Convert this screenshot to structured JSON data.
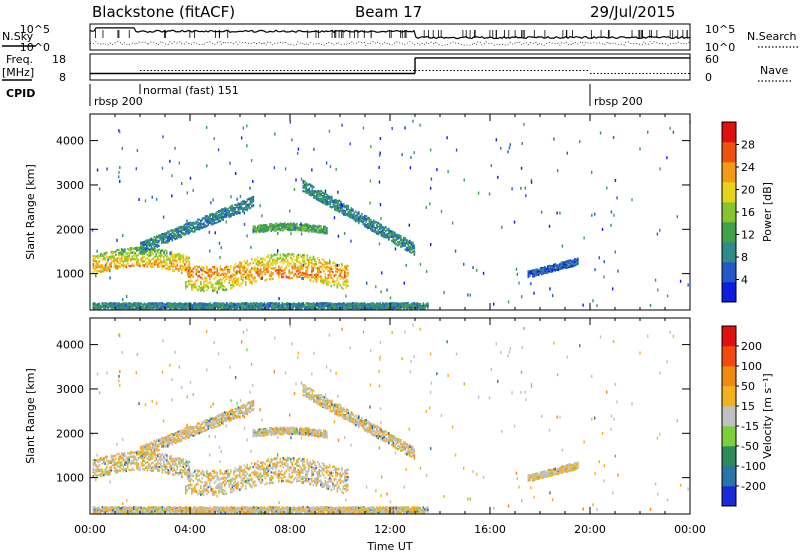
{
  "header": {
    "title": "Blackstone (fitACF)",
    "beam": "Beam 17",
    "date": "29/Jul/2015"
  },
  "chart_data": [
    {
      "type": "line",
      "name_panel": "sky-search",
      "left_label": "N.Sky",
      "right_label": "N.Search",
      "left_ticks": [
        "10^5",
        "10^0"
      ],
      "right_ticks": [
        "10^5",
        "10^0"
      ]
    },
    {
      "type": "line",
      "name_panel": "freq-nave",
      "left_label_line1": "Freq.",
      "left_label_line2": "[MHz]",
      "right_label": "Nave",
      "left_ticks": [
        "18",
        "8"
      ],
      "right_ticks": [
        "60",
        "0"
      ],
      "freq_segments": [
        {
          "t0": 0.0,
          "t1": 13.0,
          "mhz": 10.5
        },
        {
          "t0": 13.0,
          "t1": 24.0,
          "mhz": 16.5
        }
      ],
      "nave_segments": [
        {
          "t0": 0.0,
          "t1": 2.0,
          "nave": 15
        },
        {
          "t0": 2.0,
          "t1": 13.0,
          "nave": 22
        },
        {
          "t0": 13.0,
          "t1": 20.0,
          "nave": 22
        },
        {
          "t0": 20.0,
          "t1": 24.0,
          "nave": 15
        }
      ]
    },
    {
      "type": "table",
      "name_panel": "cpid",
      "label": "CPID",
      "entries": [
        {
          "t": 0.0,
          "text": "rbsp 200"
        },
        {
          "t": 2.0,
          "text": "normal (fast) 151"
        },
        {
          "t": 20.0,
          "text": "rbsp 200"
        }
      ]
    },
    {
      "type": "heatmap",
      "name_panel": "power",
      "ylabel": "Slant Range [km]",
      "y_ticks": [
        1000,
        2000,
        3000,
        4000
      ],
      "ylim": [
        180,
        4600
      ],
      "colorbar_label": "Power [dB]",
      "colorbar_ticks": [
        "28",
        "24",
        "20",
        "16",
        "12",
        "8",
        "4"
      ],
      "colors": [
        "#0b1ee0",
        "#2458c8",
        "#2f8a8a",
        "#42a04a",
        "#86c62c",
        "#e8d21a",
        "#f59a14",
        "#f0520e",
        "#e01010"
      ]
    },
    {
      "type": "heatmap",
      "name_panel": "velocity",
      "ylabel": "Slant Range [km]",
      "y_ticks": [
        1000,
        2000,
        3000,
        4000
      ],
      "ylim": [
        180,
        4600
      ],
      "colorbar_label": "Velocity [m s⁻¹]",
      "colorbar_ticks": [
        "200",
        "100",
        "50",
        "15",
        "-15",
        "-50",
        "-100",
        "-200"
      ],
      "colors": [
        "#1a2ad8",
        "#2c74a8",
        "#2f8a5a",
        "#7ed03a",
        "#c0c0c0",
        "#f2b21e",
        "#f08a12",
        "#f04a0e",
        "#e01010"
      ],
      "xlabel": "Time UT",
      "x_ticks": [
        "00:00",
        "04:00",
        "08:00",
        "12:00",
        "16:00",
        "20:00",
        "00:00"
      ],
      "xlim": [
        0,
        24
      ]
    }
  ]
}
